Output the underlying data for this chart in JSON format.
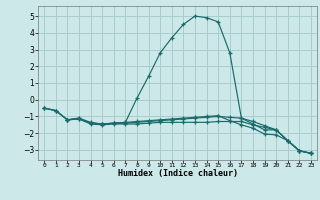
{
  "xlabel": "Humidex (Indice chaleur)",
  "bg_color": "#cce8e8",
  "grid_color": "#aacccc",
  "line_color": "#1a6b6b",
  "xlim": [
    -0.5,
    23.5
  ],
  "ylim": [
    -3.6,
    5.6
  ],
  "yticks": [
    -3,
    -2,
    -1,
    0,
    1,
    2,
    3,
    4,
    5
  ],
  "xticks": [
    0,
    1,
    2,
    3,
    4,
    5,
    6,
    7,
    8,
    9,
    10,
    11,
    12,
    13,
    14,
    15,
    16,
    17,
    18,
    19,
    20,
    21,
    22,
    23
  ],
  "line1_x": [
    0,
    1,
    2,
    3,
    4,
    5,
    6,
    7,
    8,
    9,
    10,
    11,
    12,
    13,
    14,
    15,
    16,
    17,
    18,
    19,
    20,
    21,
    22,
    23
  ],
  "line1_y": [
    -0.5,
    -0.65,
    -1.2,
    -1.1,
    -1.35,
    -1.45,
    -1.4,
    -1.35,
    0.1,
    1.4,
    2.8,
    3.7,
    4.5,
    5.0,
    4.9,
    4.65,
    2.8,
    -1.1,
    -1.45,
    -1.8,
    -1.8,
    -2.45,
    -3.05,
    -3.2
  ],
  "line2_x": [
    0,
    1,
    2,
    3,
    4,
    5,
    6,
    7,
    8,
    9,
    10,
    11,
    12,
    13,
    14,
    15,
    16,
    17,
    18,
    19,
    20,
    21,
    22,
    23
  ],
  "line2_y": [
    -0.5,
    -0.65,
    -1.2,
    -1.15,
    -1.4,
    -1.45,
    -1.4,
    -1.4,
    -1.35,
    -1.3,
    -1.25,
    -1.2,
    -1.15,
    -1.1,
    -1.05,
    -1.0,
    -1.05,
    -1.1,
    -1.3,
    -1.55,
    -1.8,
    -2.45,
    -3.05,
    -3.2
  ],
  "line3_x": [
    0,
    1,
    2,
    3,
    4,
    5,
    6,
    7,
    8,
    9,
    10,
    11,
    12,
    13,
    14,
    15,
    16,
    17,
    18,
    19,
    20,
    21,
    22,
    23
  ],
  "line3_y": [
    -0.5,
    -0.65,
    -1.2,
    -1.15,
    -1.45,
    -1.5,
    -1.45,
    -1.45,
    -1.45,
    -1.4,
    -1.35,
    -1.35,
    -1.35,
    -1.35,
    -1.35,
    -1.3,
    -1.3,
    -1.3,
    -1.5,
    -1.65,
    -1.8,
    -2.45,
    -3.05,
    -3.2
  ],
  "line4_x": [
    2,
    3,
    4,
    5,
    6,
    7,
    8,
    9,
    10,
    11,
    12,
    13,
    14,
    15,
    16,
    17,
    18,
    19,
    20,
    21,
    22,
    23
  ],
  "line4_y": [
    -1.2,
    -1.1,
    -1.4,
    -1.45,
    -1.4,
    -1.35,
    -1.3,
    -1.25,
    -1.2,
    -1.15,
    -1.1,
    -1.05,
    -1.0,
    -0.95,
    -1.25,
    -1.5,
    -1.7,
    -2.05,
    -2.1,
    -2.45,
    -3.05,
    -3.2
  ]
}
